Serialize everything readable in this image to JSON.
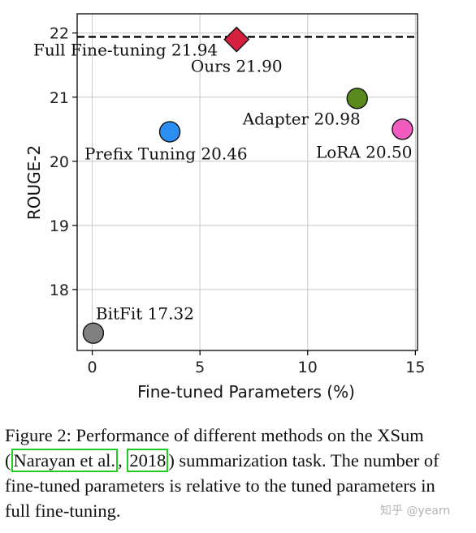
{
  "chart_data": {
    "type": "scatter",
    "xlabel": "Fine-tuned Parameters (%)",
    "ylabel": "ROUGE-2",
    "xlim": [
      -0.7,
      15.1
    ],
    "ylim": [
      17.05,
      22.3
    ],
    "xticks": [
      0,
      5,
      10,
      15
    ],
    "yticks": [
      18,
      19,
      20,
      21,
      22
    ],
    "grid": true,
    "reference_line": {
      "label": "Full Fine-tuning 21.94",
      "y": 21.94,
      "style": "dashed",
      "color": "#000000"
    },
    "points": [
      {
        "label": "Ours 21.90",
        "x": 6.7,
        "y": 21.9,
        "marker": "diamond",
        "color": "#d6203f"
      },
      {
        "label": "Adapter 20.98",
        "x": 12.3,
        "y": 20.98,
        "marker": "circle",
        "color": "#5a8a1e"
      },
      {
        "label": "Prefix Tuning 20.46",
        "x": 3.6,
        "y": 20.46,
        "marker": "circle",
        "color": "#2b8ef2"
      },
      {
        "label": "LoRA 20.50",
        "x": 14.4,
        "y": 20.5,
        "marker": "circle",
        "color": "#f25cbf"
      },
      {
        "label": "BitFit 17.32",
        "x": 0.05,
        "y": 17.32,
        "marker": "circle",
        "color": "#808080"
      }
    ]
  },
  "caption": {
    "before": "Figure 2: Performance of different methods on the XSum (",
    "cite_author": "Narayan et al.",
    "cite_sep": ", ",
    "cite_year": "2018",
    "after": ") summarization task. The number of fine-tuned parameters is relative to the tuned parameters in full fine-tuning."
  },
  "watermark": "知乎 @yearn"
}
